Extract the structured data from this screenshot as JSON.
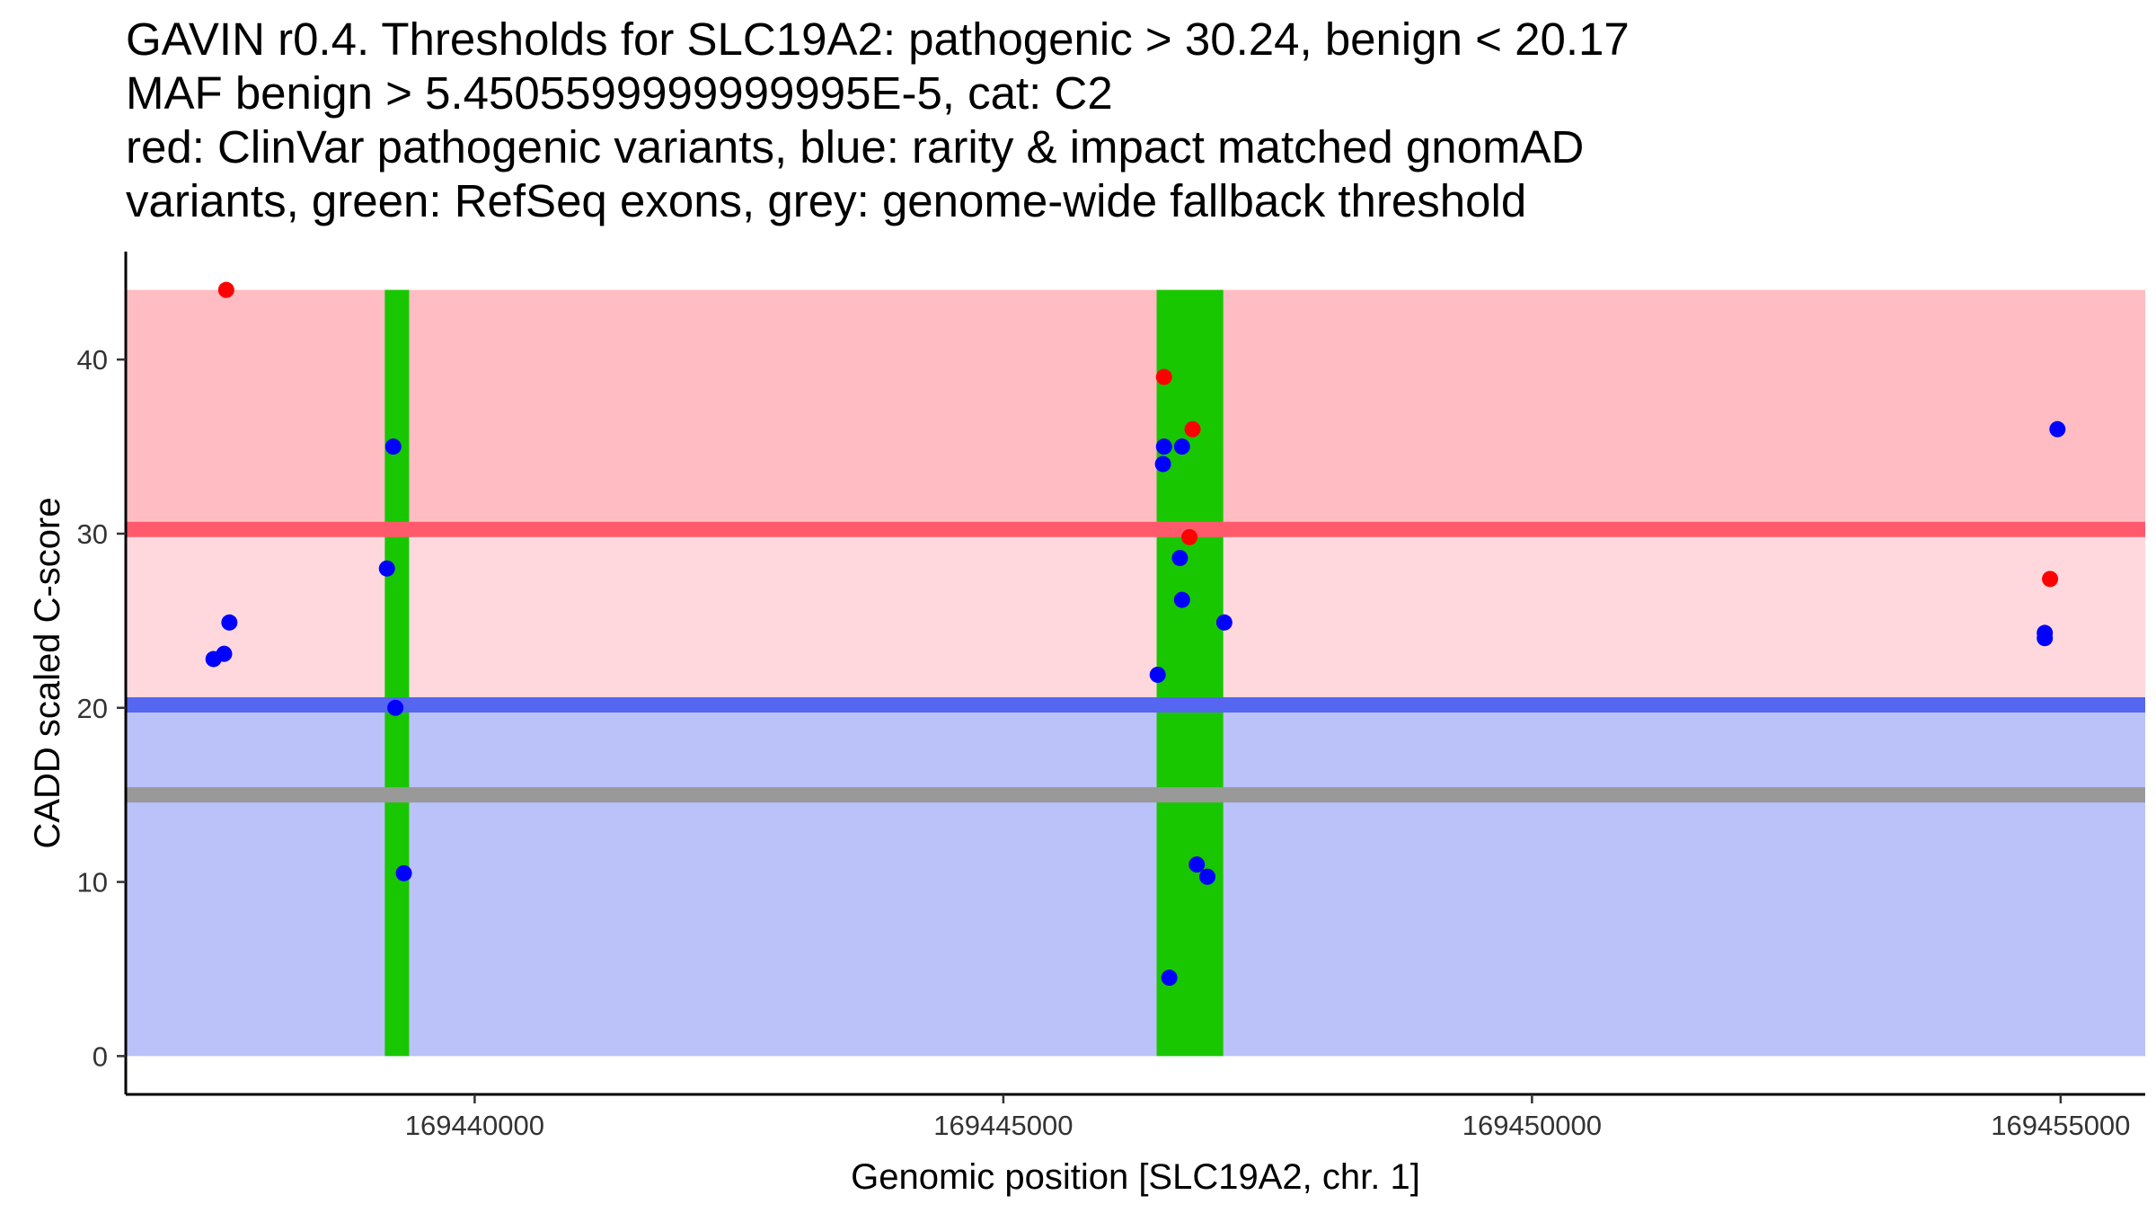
{
  "title_lines": [
    "GAVIN r0.4. Thresholds for SLC19A2: pathogenic > 30.24, benign < 20.17",
    "MAF benign > 5.4505599999999995E-5, cat: C2",
    "red: ClinVar pathogenic variants, blue: rarity & impact matched gnomAD",
    "variants, green: RefSeq exons, grey: genome-wide fallback threshold"
  ],
  "colors": {
    "pathogenic_zone": "#ffbcc3",
    "middle_zone": "#ffd8de",
    "benign_zone": "#bbc1f9",
    "pathogenic_line": "#ff5a6b",
    "benign_line": "#5566f0",
    "fallback_line": "#999999",
    "exon": "#19c700",
    "clinvar_point": "#ff0000",
    "gnomad_point": "#0000ff",
    "axis": "#000000"
  },
  "chart_data": {
    "type": "scatter",
    "xlabel": "Genomic position [SLC19A2, chr. 1]",
    "ylabel": "CADD scaled C-score",
    "xlim": [
      169436700,
      169455800
    ],
    "ylim": [
      -2.2,
      46.2
    ],
    "x_ticks": [
      169440000,
      169445000,
      169450000,
      169455000
    ],
    "x_tick_labels": [
      "169440000",
      "169445000",
      "169450000",
      "169455000"
    ],
    "y_ticks": [
      0,
      10,
      20,
      30,
      40
    ],
    "y_tick_labels": [
      "0",
      "10",
      "20",
      "30",
      "40"
    ],
    "thresholds": {
      "pathogenic": 30.24,
      "benign": 20.17,
      "fallback": 15,
      "zone_top": 44,
      "zone_bottom": 0
    },
    "exons": [
      {
        "start": 169439150,
        "end": 169439380
      },
      {
        "start": 169446450,
        "end": 169447080
      }
    ],
    "series": [
      {
        "name": "ClinVar pathogenic variants",
        "color": "#ff0000",
        "points": [
          {
            "x": 169437650,
            "y": 44.0
          },
          {
            "x": 169446520,
            "y": 39.0
          },
          {
            "x": 169446790,
            "y": 36.0
          },
          {
            "x": 169446760,
            "y": 29.8
          },
          {
            "x": 169454900,
            "y": 27.4
          }
        ]
      },
      {
        "name": "gnomAD variants",
        "color": "#0000ff",
        "points": [
          {
            "x": 169437530,
            "y": 22.8
          },
          {
            "x": 169437630,
            "y": 23.1
          },
          {
            "x": 169437680,
            "y": 24.9
          },
          {
            "x": 169439170,
            "y": 28.0
          },
          {
            "x": 169439230,
            "y": 35.0
          },
          {
            "x": 169439250,
            "y": 20.0
          },
          {
            "x": 169439330,
            "y": 10.5
          },
          {
            "x": 169446520,
            "y": 35.0
          },
          {
            "x": 169446510,
            "y": 34.0
          },
          {
            "x": 169446690,
            "y": 35.0
          },
          {
            "x": 169446670,
            "y": 28.6
          },
          {
            "x": 169446690,
            "y": 26.2
          },
          {
            "x": 169446460,
            "y": 21.9
          },
          {
            "x": 169447090,
            "y": 24.9
          },
          {
            "x": 169446830,
            "y": 11.0
          },
          {
            "x": 169446930,
            "y": 10.3
          },
          {
            "x": 169446570,
            "y": 4.5
          },
          {
            "x": 169454850,
            "y": 24.3
          },
          {
            "x": 169454850,
            "y": 24.0
          },
          {
            "x": 169454970,
            "y": 36.0
          }
        ]
      }
    ]
  }
}
